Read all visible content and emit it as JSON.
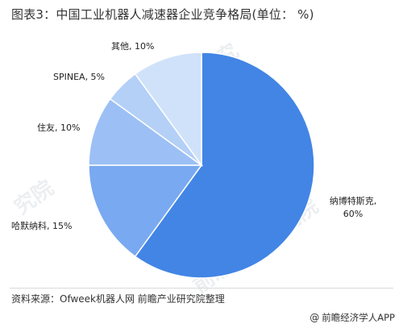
{
  "title": "图表3：中国工业机器人减速器企业竞争格局(单位： %)",
  "source": "资料来源：Ofweek机器人网 前瞻产业研究院整理",
  "brand": {
    "icon": "@",
    "label": "前瞻经济学人APP"
  },
  "watermarks": [
    "前瞻产业研究",
    "前瞻产业研究院",
    "究院"
  ],
  "colors": {
    "slice_1": "#4285e5",
    "slice_2": "#79a9f0",
    "slice_3": "#9cc0f5",
    "slice_4": "#b4d0f7",
    "slice_5": "#d0e2fa",
    "separator": "#ffffff"
  },
  "chart_data": {
    "type": "pie",
    "title": "图表3：中国工业机器人减速器企业竞争格局(单位： %)",
    "unit": "%",
    "slices": [
      {
        "name": "纳博特斯克",
        "value": 60,
        "label_lines": [
          "纳博特斯克,",
          "60%"
        ]
      },
      {
        "name": "哈默纳科",
        "value": 15,
        "label_lines": [
          "哈默纳科, 15%"
        ]
      },
      {
        "name": "住友",
        "value": 10,
        "label_lines": [
          "住友, 10%"
        ]
      },
      {
        "name": "SPINEA",
        "value": 5,
        "label_lines": [
          "SPINEA, 5%"
        ]
      },
      {
        "name": "其他",
        "value": 10,
        "label_lines": [
          "其他, 10%"
        ]
      }
    ],
    "start_angle": "12 o'clock",
    "direction": "clockwise",
    "legend": "none",
    "data_labels": "outside"
  }
}
